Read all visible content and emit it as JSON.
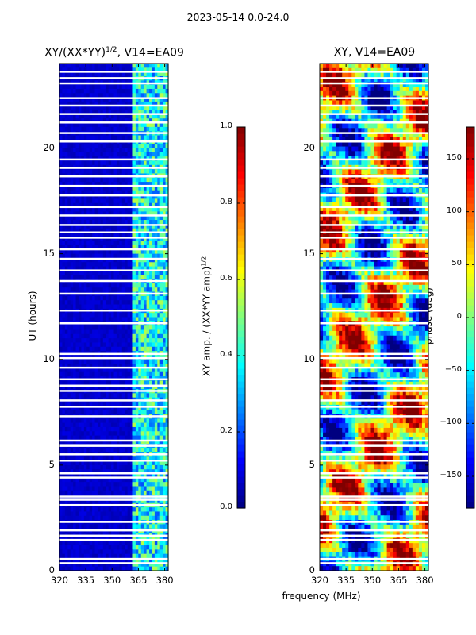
{
  "suptitle": "2023-05-14 0.0-24.0",
  "colors": {
    "background": "#ffffff",
    "axes": "#000000",
    "gap": "#ffffff"
  },
  "chart_data": [
    {
      "type": "heatmap",
      "title": "XY/(XX*YY)",
      "title_exponent": "1/2",
      "title_suffix": ", V14=EA09",
      "xlabel": "frequency (MHz)",
      "ylabel": "UT (hours)",
      "x_ticks": [
        "320",
        "335",
        "350",
        "365",
        "380"
      ],
      "x_tick_values": [
        320,
        335,
        350,
        365,
        380
      ],
      "xlim": [
        320,
        382
      ],
      "y_ticks": [
        "0",
        "5",
        "10",
        "15",
        "20"
      ],
      "y_tick_values": [
        0,
        5,
        10,
        15,
        20
      ],
      "ylim": [
        0,
        24
      ],
      "colorbar": {
        "label": "XY amp. / (XX*YY amp)",
        "label_exponent": "1/2",
        "range": [
          0.0,
          1.0
        ],
        "ticks": [
          "0.0",
          "0.2",
          "0.4",
          "0.6",
          "0.8",
          "1.0"
        ],
        "tick_values": [
          0.0,
          0.2,
          0.4,
          0.6,
          0.8,
          1.0
        ],
        "colormap": "jet"
      },
      "description_values": {
        "low_band_level": 0.05,
        "high_band_start_mhz": 362,
        "high_band_level": 0.4
      }
    },
    {
      "type": "heatmap",
      "title": "XY, V14=EA09",
      "xlabel": "frequency (MHz)",
      "ylabel": "",
      "x_ticks": [
        "320",
        "335",
        "350",
        "365",
        "380"
      ],
      "x_tick_values": [
        320,
        335,
        350,
        365,
        380
      ],
      "xlim": [
        320,
        382
      ],
      "y_ticks": [
        "0",
        "5",
        "10",
        "15",
        "20"
      ],
      "y_tick_values": [
        0,
        5,
        10,
        15,
        20
      ],
      "ylim": [
        0,
        24
      ],
      "colorbar": {
        "label": "phase (deg)",
        "range": [
          -180,
          180
        ],
        "ticks": [
          "−150",
          "−100",
          "−50",
          "0",
          "50",
          "100",
          "150"
        ],
        "tick_values": [
          -150,
          -100,
          -50,
          0,
          50,
          100,
          150
        ],
        "colormap": "jet"
      }
    }
  ],
  "gap_rows_hours": [
    0.35,
    0.55,
    1.45,
    1.65,
    1.9,
    2.3,
    3.1,
    3.35,
    3.5,
    4.4,
    4.6,
    5.2,
    5.5,
    5.9,
    6.15,
    7.3,
    7.75,
    8.05,
    8.5,
    8.75,
    9.05,
    9.6,
    10.05,
    10.25,
    11.7,
    12.3,
    13.1,
    13.7,
    14.2,
    14.75,
    15.2,
    15.75,
    16.0,
    16.35,
    16.8,
    17.2,
    17.75,
    18.2,
    18.65,
    19.05,
    19.45,
    20.3,
    20.7,
    21.2,
    21.6,
    22.0,
    22.35,
    23.05,
    23.3,
    23.6
  ]
}
